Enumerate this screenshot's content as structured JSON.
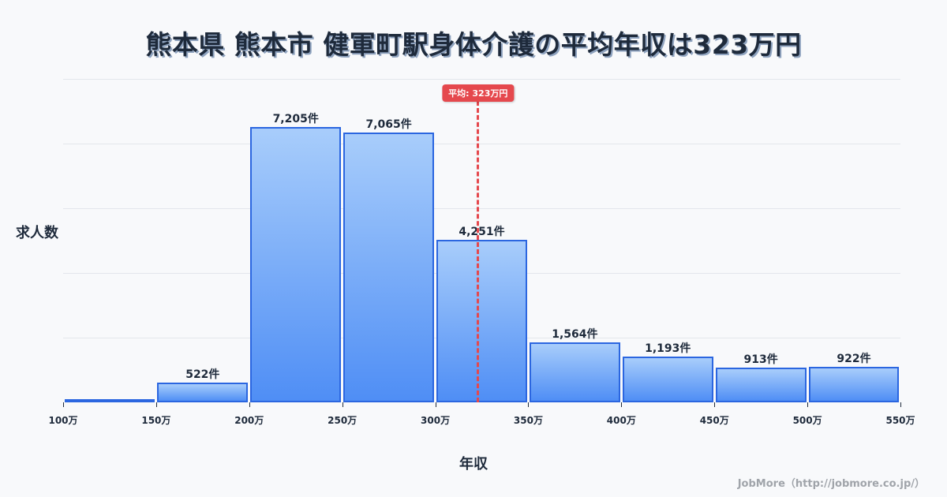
{
  "title": "熊本県 熊本市 健軍町駅身体介護の平均年収は323万円",
  "y_axis_label": "求人数",
  "x_axis_label": "年収",
  "credit": "JobMore（http://jobmore.co.jp/）",
  "mean_badge": "平均: 323万円",
  "colors": {
    "bar_top": "#a8cdfb",
    "bar_bottom": "#4f8ef5",
    "bar_border": "#2b66e0",
    "mean_line": "#e5484d",
    "background": "#f8f9fb"
  },
  "chart_data": {
    "type": "bar",
    "title": "熊本県 熊本市 健軍町駅身体介護の平均年収は323万円",
    "xlabel": "年収",
    "ylabel": "求人数",
    "categories": [
      "100万-150万",
      "150万-200万",
      "200万-250万",
      "250万-300万",
      "300万-350万",
      "350万-400万",
      "400万-450万",
      "450万-500万",
      "500万-550万"
    ],
    "values": [
      8,
      522,
      7205,
      7065,
      4251,
      1564,
      1193,
      913,
      922
    ],
    "value_labels": [
      "",
      "522件",
      "7,205件",
      "7,065件",
      "4,251件",
      "1,564件",
      "1,193件",
      "913件",
      "922件"
    ],
    "x_ticks": [
      "100万",
      "150万",
      "200万",
      "250万",
      "300万",
      "350万",
      "400万",
      "450万",
      "500万",
      "550万"
    ],
    "x_range": [
      100,
      550
    ],
    "ylim": [
      0,
      8466
    ],
    "grid": true,
    "legend": null,
    "annotations": [
      {
        "type": "vline",
        "x": 323,
        "label": "平均: 323万円"
      }
    ]
  }
}
